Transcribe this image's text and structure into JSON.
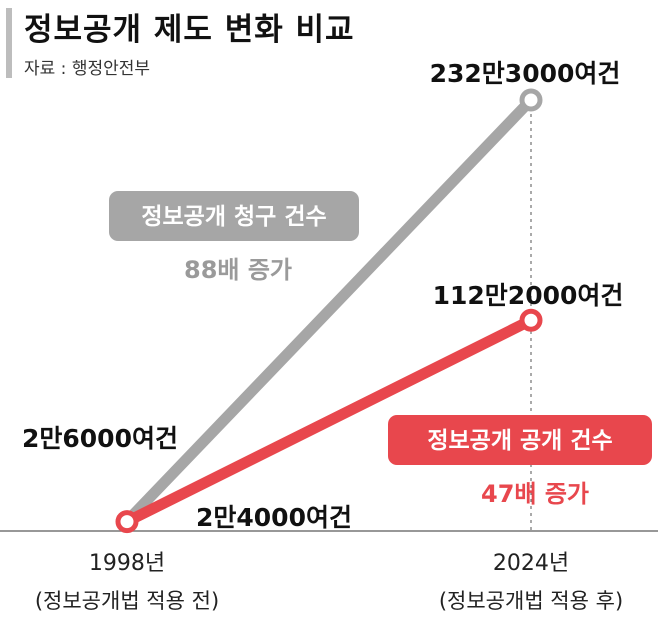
{
  "header": {
    "title": "정보공개 제도 변화 비교",
    "source": "자료 : 행정안전부"
  },
  "colors": {
    "request": "#a6a6a6",
    "disclosure": "#e8474d",
    "request_text": "#9a9a9a",
    "disclosure_text": "#e8474d"
  },
  "chart_data": {
    "type": "line",
    "title": "정보공개 제도 변화 비교",
    "categories": [
      "1998년 (정보공개법 적용 전)",
      "2024년 (정보공개법 적용 후)"
    ],
    "x_tick_labels": [
      {
        "year": "1998년",
        "sub": "(정보공개법 적용 전)"
      },
      {
        "year": "2024년",
        "sub": "(정보공개법 적용 후)"
      }
    ],
    "series": [
      {
        "name": "정보공개 청구 건수",
        "values": [
          26000,
          2323000
        ],
        "value_labels": [
          "2만6000여건",
          "232만3000여건"
        ],
        "growth_label": "88배 증가",
        "color": "#a6a6a6"
      },
      {
        "name": "정보공개 공개 건수",
        "values": [
          24000,
          1122000
        ],
        "value_labels": [
          "2만4000여건",
          "112만2000여건"
        ],
        "growth_label": "47배 증가",
        "color": "#e8474d"
      }
    ],
    "ylim": [
      0,
      2323000
    ],
    "xlabel": "",
    "ylabel": "",
    "grid": false,
    "legend": "inline labels"
  }
}
